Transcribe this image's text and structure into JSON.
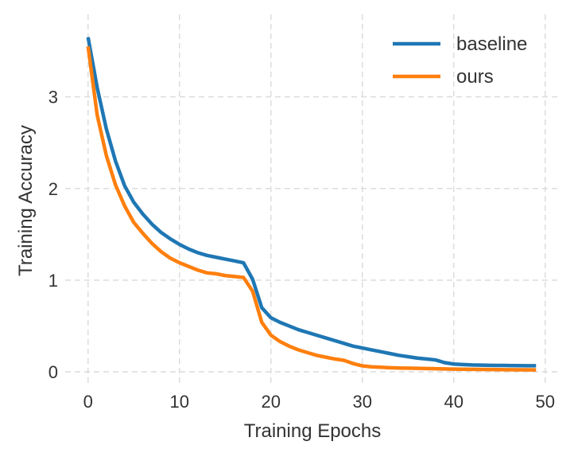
{
  "chart_data": {
    "type": "line",
    "title": "",
    "xlabel": "Training Epochs",
    "ylabel": "Training Accuracy",
    "xlim": [
      -2.5,
      51.5
    ],
    "ylim": [
      -0.13,
      3.9
    ],
    "xticks": [
      0,
      10,
      20,
      30,
      40,
      50
    ],
    "yticks": [
      0,
      1,
      2,
      3
    ],
    "grid": true,
    "legend_position": "top-right",
    "series": [
      {
        "name": "baseline",
        "color": "#1f77b4",
        "x": [
          0,
          1,
          2,
          3,
          4,
          5,
          6,
          7,
          8,
          9,
          10,
          11,
          12,
          13,
          14,
          15,
          16,
          17,
          18,
          19,
          20,
          21,
          22,
          23,
          24,
          25,
          26,
          27,
          28,
          29,
          30,
          31,
          32,
          33,
          34,
          35,
          36,
          37,
          38,
          39,
          40,
          41,
          42,
          43,
          44,
          45,
          46,
          47,
          48,
          49
        ],
        "y": [
          3.65,
          3.1,
          2.65,
          2.3,
          2.03,
          1.85,
          1.72,
          1.61,
          1.52,
          1.45,
          1.39,
          1.34,
          1.3,
          1.27,
          1.25,
          1.23,
          1.21,
          1.19,
          1.01,
          0.7,
          0.59,
          0.54,
          0.5,
          0.46,
          0.43,
          0.4,
          0.37,
          0.34,
          0.31,
          0.28,
          0.26,
          0.24,
          0.22,
          0.2,
          0.18,
          0.165,
          0.15,
          0.14,
          0.13,
          0.1,
          0.085,
          0.08,
          0.075,
          0.073,
          0.071,
          0.07,
          0.069,
          0.068,
          0.067,
          0.066
        ]
      },
      {
        "name": "ours",
        "color": "#ff7f0e",
        "x": [
          0,
          1,
          2,
          3,
          4,
          5,
          6,
          7,
          8,
          9,
          10,
          11,
          12,
          13,
          14,
          15,
          16,
          17,
          18,
          19,
          20,
          21,
          22,
          23,
          24,
          25,
          26,
          27,
          28,
          29,
          30,
          31,
          32,
          33,
          34,
          35,
          36,
          37,
          38,
          39,
          40,
          41,
          42,
          43,
          44,
          45,
          46,
          47,
          48,
          49
        ],
        "y": [
          3.55,
          2.8,
          2.36,
          2.04,
          1.81,
          1.63,
          1.51,
          1.4,
          1.31,
          1.24,
          1.19,
          1.15,
          1.11,
          1.08,
          1.07,
          1.05,
          1.04,
          1.03,
          0.88,
          0.54,
          0.4,
          0.33,
          0.28,
          0.24,
          0.21,
          0.18,
          0.16,
          0.14,
          0.125,
          0.09,
          0.065,
          0.055,
          0.05,
          0.045,
          0.042,
          0.04,
          0.038,
          0.036,
          0.034,
          0.032,
          0.03,
          0.028,
          0.027,
          0.026,
          0.025,
          0.024,
          0.023,
          0.022,
          0.022,
          0.021
        ]
      }
    ]
  }
}
